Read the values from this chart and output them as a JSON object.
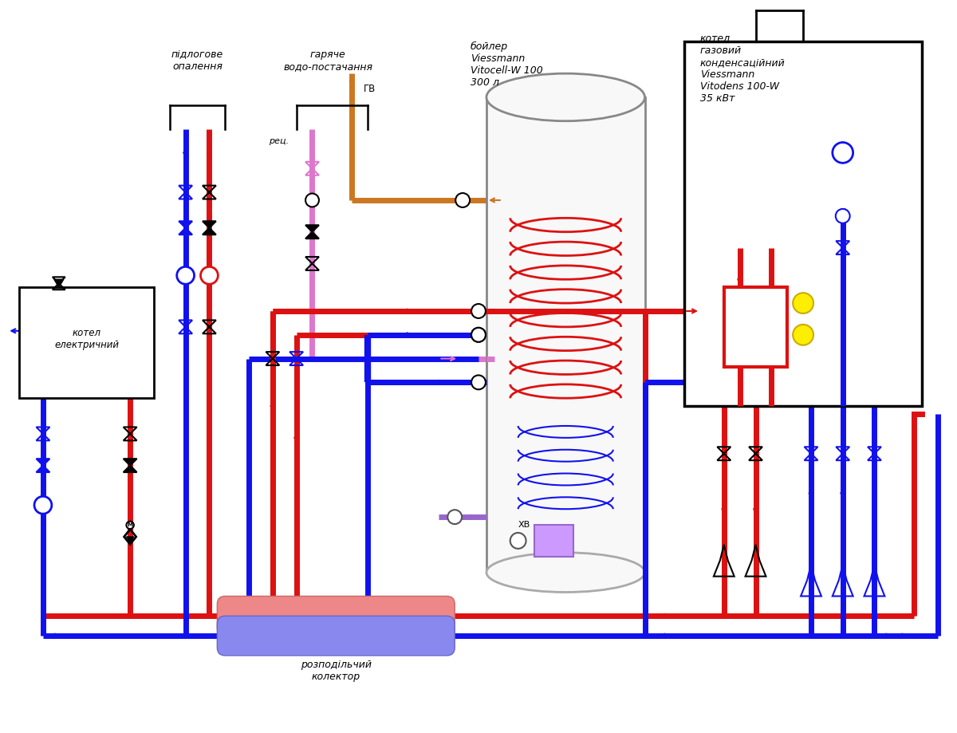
{
  "bg": "#ffffff",
  "red": "#dd1111",
  "blue": "#1111ee",
  "pink": "#dd77cc",
  "orange": "#cc7722",
  "purple": "#9966cc",
  "yellow": "#ffee00",
  "gray": "#aaaaaa",
  "lw": 5,
  "lw2": 3,
  "labels": {
    "floor": "підлогове\nопалення",
    "hotwater": "гаряче\nводо-постачання",
    "boiler_title": "бойлер\nViessmann\nVitocell-W 100\n300 л",
    "gas_title": "котел\nгазовий\nконденсаційний\nViessmann\nVitodens 100-W\n35 кВт",
    "elec_title": "котел\nелектричний",
    "collector": "розподільчий\nколектор",
    "rec": "рец.",
    "gv": "ГВ",
    "xv": "ХВ"
  },
  "figsize": [
    12.0,
    9.19
  ],
  "dpi": 100,
  "xlim": [
    0,
    120
  ],
  "ylim": [
    0,
    91.9
  ]
}
